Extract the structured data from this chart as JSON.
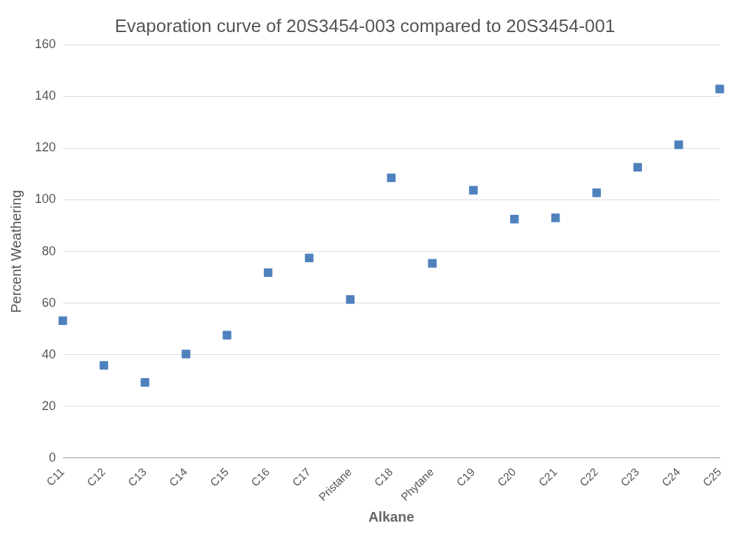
{
  "chart_data": {
    "type": "scatter",
    "title": "Evaporation curve of 20S3454-003 compared to 20S3454-001",
    "xlabel": "Alkane",
    "ylabel": "Percent Weathering",
    "categories": [
      "C11",
      "C12",
      "C13",
      "C14",
      "C15",
      "C16",
      "C17",
      "Pristane",
      "C18",
      "Phytane",
      "C19",
      "C20",
      "C21",
      "C22",
      "C23",
      "C24",
      "C25"
    ],
    "values": [
      53.2,
      35.9,
      29.3,
      40.3,
      47.6,
      71.8,
      77.5,
      61.4,
      108.5,
      75.4,
      103.7,
      92.5,
      93,
      102.7,
      112.6,
      121.3,
      142.9
    ],
    "color": "#4f81bd",
    "marker": "square",
    "ylim": [
      0,
      160
    ],
    "yticks": [
      0,
      20,
      40,
      60,
      80,
      100,
      120,
      140,
      160
    ],
    "grid": "y",
    "legend": false
  }
}
